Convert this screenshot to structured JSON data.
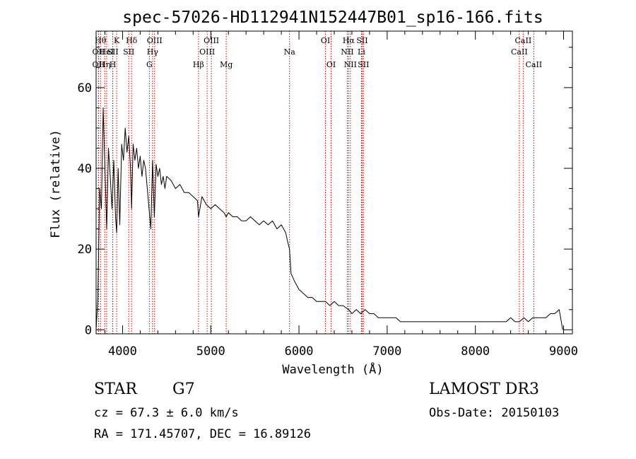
{
  "chart_data": {
    "type": "line",
    "title": "spec-57026-HD112941N152447B01_sp16-166.fits",
    "xlabel": "Wavelength (Å)",
    "ylabel": "Flux (relative)",
    "xlim": [
      3700,
      9100
    ],
    "ylim": [
      -1,
      74
    ],
    "xticks": [
      4000,
      5000,
      6000,
      7000,
      8000,
      9000
    ],
    "yticks": [
      0,
      20,
      40,
      60
    ],
    "grid": false,
    "line_color": "#000000",
    "marker_color": "#cc0000",
    "series": [
      {
        "name": "flux",
        "x": [
          3700,
          3720,
          3740,
          3760,
          3780,
          3800,
          3820,
          3840,
          3860,
          3880,
          3900,
          3920,
          3933,
          3950,
          3968,
          3990,
          4010,
          4030,
          4050,
          4070,
          4090,
          4102,
          4120,
          4140,
          4160,
          4180,
          4200,
          4220,
          4240,
          4260,
          4280,
          4300,
          4320,
          4340,
          4360,
          4380,
          4400,
          4420,
          4440,
          4460,
          4480,
          4500,
          4550,
          4600,
          4650,
          4700,
          4750,
          4800,
          4850,
          4861,
          4900,
          4950,
          5000,
          5050,
          5100,
          5150,
          5175,
          5200,
          5250,
          5300,
          5350,
          5400,
          5450,
          5500,
          5550,
          5600,
          5650,
          5700,
          5750,
          5800,
          5850,
          5870,
          5893,
          5910,
          5950,
          6000,
          6050,
          6100,
          6150,
          6200,
          6250,
          6300,
          6350,
          6400,
          6450,
          6500,
          6563,
          6600,
          6650,
          6700,
          6750,
          6800,
          6850,
          6900,
          6950,
          7000,
          7050,
          7100,
          7150,
          7200,
          7250,
          7300,
          7350,
          7400,
          7450,
          7500,
          7550,
          7600,
          7650,
          7700,
          7750,
          7800,
          7850,
          7900,
          7950,
          8000,
          8050,
          8100,
          8150,
          8200,
          8250,
          8300,
          8350,
          8400,
          8450,
          8500,
          8550,
          8600,
          8650,
          8700,
          8750,
          8800,
          8850,
          8900,
          8950,
          8990
        ],
        "y": [
          0,
          8,
          35,
          30,
          55,
          40,
          25,
          45,
          38,
          30,
          42,
          28,
          24,
          40,
          26,
          46,
          42,
          50,
          44,
          48,
          40,
          30,
          46,
          42,
          45,
          40,
          43,
          38,
          42,
          40,
          35,
          30,
          25,
          42,
          28,
          41,
          38,
          40,
          36,
          38,
          35,
          38,
          37,
          35,
          36,
          34,
          34,
          33,
          32,
          28,
          33,
          31,
          30,
          31,
          30,
          29,
          28,
          29,
          28,
          28,
          27,
          27,
          28,
          27,
          26,
          27,
          26,
          27,
          25,
          26,
          24,
          22,
          20,
          14,
          12,
          10,
          9,
          8,
          8,
          7,
          7,
          7,
          6,
          7,
          6,
          6,
          5,
          4,
          5,
          4,
          5,
          4,
          4,
          3,
          3,
          3,
          3,
          3,
          2,
          2,
          2,
          2,
          2,
          2,
          2,
          2,
          2,
          2,
          2,
          2,
          2,
          2,
          2,
          2,
          2,
          2,
          2,
          2,
          2,
          2,
          2,
          2,
          2,
          3,
          2,
          2,
          3,
          2,
          3,
          3,
          3,
          3,
          4,
          4,
          5,
          0
        ]
      }
    ],
    "lines": [
      {
        "wl": 3727,
        "label": "OII",
        "row": 3
      },
      {
        "wl": 3727,
        "label": "OII",
        "row": 2
      },
      {
        "wl": 3750,
        "label": "Hθ",
        "row": 1
      },
      {
        "wl": 3798,
        "label": "Hη",
        "row": 3
      },
      {
        "wl": 3820,
        "label": "HeI",
        "row": 2
      },
      {
        "wl": 3889,
        "label": "H",
        "row": 3
      },
      {
        "wl": 3889,
        "label": "SII",
        "row": 2
      },
      {
        "wl": 3933,
        "label": "K",
        "row": 1
      },
      {
        "wl": 4102,
        "label": "Hδ",
        "row": 1
      },
      {
        "wl": 4070,
        "label": "SII",
        "row": 2
      },
      {
        "wl": 4304,
        "label": "G",
        "row": 3
      },
      {
        "wl": 4340,
        "label": "Hγ",
        "row": 2
      },
      {
        "wl": 4363,
        "label": "OIII",
        "row": 1
      },
      {
        "wl": 4861,
        "label": "Hβ",
        "row": 3
      },
      {
        "wl": 4959,
        "label": "OIII",
        "row": 2
      },
      {
        "wl": 5007,
        "label": "OIII",
        "row": 1
      },
      {
        "wl": 5175,
        "label": "Mg",
        "row": 3
      },
      {
        "wl": 5893,
        "label": "Na",
        "row": 2
      },
      {
        "wl": 6300,
        "label": "OI",
        "row": 1
      },
      {
        "wl": 6364,
        "label": "OI",
        "row": 3
      },
      {
        "wl": 6548,
        "label": "NII",
        "row": 2
      },
      {
        "wl": 6563,
        "label": "Hα",
        "row": 1
      },
      {
        "wl": 6583,
        "label": "NII",
        "row": 3
      },
      {
        "wl": 6708,
        "label": "Li",
        "row": 2
      },
      {
        "wl": 6716,
        "label": "SII",
        "row": 1
      },
      {
        "wl": 6731,
        "label": "SII",
        "row": 3
      },
      {
        "wl": 8498,
        "label": "CaII",
        "row": 2
      },
      {
        "wl": 8542,
        "label": "CaII",
        "row": 1
      },
      {
        "wl": 8662,
        "label": "CaII",
        "row": 3
      }
    ]
  },
  "info": {
    "object_class": "STAR",
    "subclass": "G7",
    "survey": "LAMOST DR3",
    "cz": "cz = 67.3 ± 6.0 km/s",
    "obs_date": "Obs-Date: 20150103",
    "coords": "RA = 171.45707, DEC =  16.89126"
  }
}
